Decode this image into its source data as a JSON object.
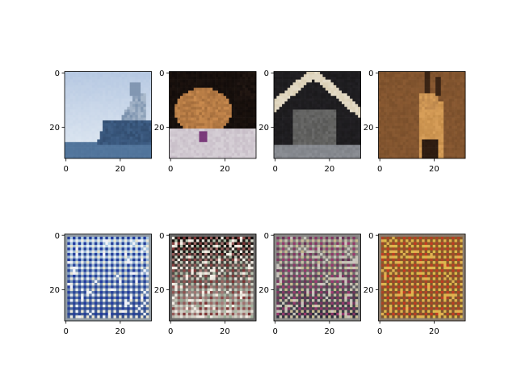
{
  "figure": {
    "background": "#ffffff",
    "axis_color": "#000000"
  },
  "chart_data": [
    {
      "type": "heatmap",
      "row": 0,
      "col": 0,
      "image_size": [
        32,
        32
      ],
      "xticks": [
        0,
        20
      ],
      "yticks": [
        0,
        20
      ],
      "x_tick_labels": [
        "0",
        "20"
      ],
      "y_tick_labels": [
        "0",
        "20"
      ],
      "content": "ship",
      "colors": {
        "sky_top": "#b7c9e2",
        "sky_bottom": "#d9e3ef",
        "sea": "#5a7fa6",
        "hull": "#3f5f86",
        "cabin": "#e6ecf3"
      }
    },
    {
      "type": "heatmap",
      "row": 0,
      "col": 1,
      "image_size": [
        32,
        32
      ],
      "xticks": [
        0,
        20
      ],
      "yticks": [
        0,
        20
      ],
      "x_tick_labels": [
        "0",
        "20"
      ],
      "y_tick_labels": [
        "0",
        "20"
      ],
      "content": "cat",
      "colors": {
        "bg": "#120c0a",
        "cat": "#c98a4e",
        "cat_dark": "#8a5a30",
        "blanket": "#d8d2d8",
        "purple": "#7a3a7a"
      }
    },
    {
      "type": "heatmap",
      "row": 0,
      "col": 2,
      "image_size": [
        32,
        32
      ],
      "xticks": [
        0,
        20
      ],
      "yticks": [
        0,
        20
      ],
      "x_tick_labels": [
        "0",
        "20"
      ],
      "y_tick_labels": [
        "0",
        "20"
      ],
      "content": "cat-under-roof",
      "colors": {
        "bg": "#1b1a1c",
        "roof": "#d9cdb2",
        "cat": "#6b6b6a",
        "floor": "#8c8f95"
      }
    },
    {
      "type": "heatmap",
      "row": 0,
      "col": 3,
      "image_size": [
        32,
        32
      ],
      "xticks": [
        0,
        20
      ],
      "yticks": [
        0,
        20
      ],
      "x_tick_labels": [
        "0",
        "20"
      ],
      "y_tick_labels": [
        "0",
        "20"
      ],
      "content": "deer",
      "colors": {
        "bg": "#8a5a32",
        "neck": "#d9a05a",
        "stripe": "#2b1a10",
        "horn": "#3a2414"
      }
    },
    {
      "type": "heatmap",
      "row": 1,
      "col": 0,
      "image_size": [
        32,
        32
      ],
      "xticks": [
        0,
        20
      ],
      "yticks": [
        0,
        20
      ],
      "x_tick_labels": [
        "0",
        "20"
      ],
      "y_tick_labels": [
        "0",
        "20"
      ],
      "content": "noisy-reconstruction",
      "colors": {
        "base_top": "#a9c6e0",
        "base_bottom": "#35508a",
        "light": "#eef1f8",
        "accent1": "#2038a0",
        "accent2": "#e8d8a0"
      }
    },
    {
      "type": "heatmap",
      "row": 1,
      "col": 1,
      "image_size": [
        32,
        32
      ],
      "xticks": [
        0,
        20
      ],
      "yticks": [
        0,
        20
      ],
      "x_tick_labels": [
        "0",
        "20"
      ],
      "y_tick_labels": [
        "0",
        "20"
      ],
      "content": "noisy-reconstruction",
      "colors": {
        "base_top": "#1a1512",
        "base_bottom": "#d8cfc6",
        "light": "#f2ece4",
        "accent1": "#7a3030",
        "accent2": "#3a6a40"
      }
    },
    {
      "type": "heatmap",
      "row": 1,
      "col": 2,
      "image_size": [
        32,
        32
      ],
      "xticks": [
        0,
        20
      ],
      "yticks": [
        0,
        20
      ],
      "x_tick_labels": [
        "0",
        "20"
      ],
      "y_tick_labels": [
        "0",
        "20"
      ],
      "content": "noisy-reconstruction",
      "colors": {
        "base_top": "#8a8680",
        "base_bottom": "#2a2c3a",
        "light": "#c8c4bc",
        "accent1": "#a03a70",
        "accent2": "#c8b060"
      }
    },
    {
      "type": "heatmap",
      "row": 1,
      "col": 3,
      "image_size": [
        32,
        32
      ],
      "xticks": [
        0,
        20
      ],
      "yticks": [
        0,
        20
      ],
      "x_tick_labels": [
        "0",
        "20"
      ],
      "y_tick_labels": [
        "0",
        "20"
      ],
      "content": "noisy-reconstruction",
      "colors": {
        "base_top": "#8a5a2a",
        "base_bottom": "#7a5430",
        "light": "#e0b050",
        "accent1": "#c83a20",
        "accent2": "#d8c840"
      }
    }
  ]
}
